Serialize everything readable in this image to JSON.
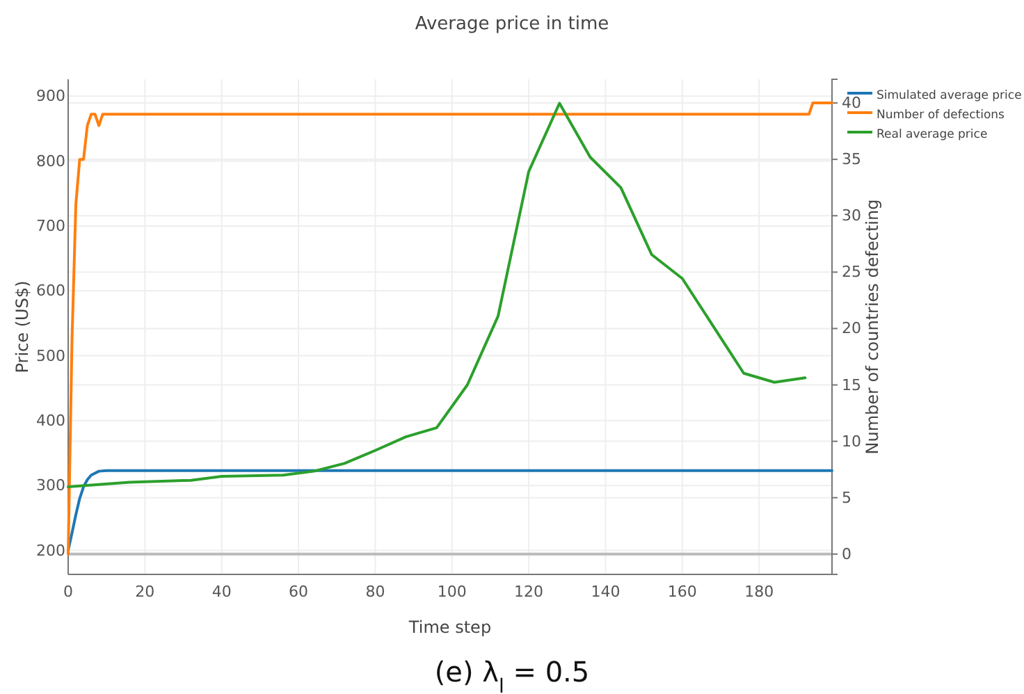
{
  "chart_data": {
    "type": "line",
    "title": "Average price in time",
    "xlabel": "Time step",
    "ylabel": "Price (US$)",
    "y2label": "Number of countries defecting",
    "annotations": [
      "(e) λ$_{l}$ = 0.5"
    ],
    "xlim": [
      0,
      199
    ],
    "xticks": [
      0,
      20,
      40,
      60,
      80,
      100,
      120,
      140,
      160,
      180
    ],
    "ylim": [
      163,
      926
    ],
    "yticks": [
      200,
      300,
      400,
      500,
      600,
      700,
      800,
      900
    ],
    "y2lim": [
      -1.8,
      42.1
    ],
    "y2ticks": [
      0,
      5,
      10,
      15,
      20,
      25,
      30,
      35,
      {
        "value": 40,
        "label": "40"
      }
    ],
    "grid": true,
    "legend": "top right",
    "line_style": "solid",
    "marker": "none",
    "ref_lines": [
      {
        "axis": "y2",
        "value": 0,
        "color": "#bbbbbb"
      }
    ],
    "series": [
      {
        "name": "Simulated average price",
        "color": "#1f77b4",
        "x": [
          0,
          1,
          2,
          3,
          4,
          5,
          6,
          8,
          10,
          12,
          199
        ],
        "values": [
          200,
          227,
          255,
          280,
          298,
          309,
          316,
          322,
          323,
          323,
          323
        ]
      },
      {
        "name": "Number of defections",
        "color": "#ff7f0e",
        "axis": "y2",
        "x": [
          0,
          1,
          2,
          3,
          4,
          5,
          6,
          7,
          8,
          9,
          193,
          194,
          199
        ],
        "values": [
          0,
          19,
          31,
          35,
          35,
          38,
          39,
          39,
          38,
          39,
          39,
          40,
          40
        ]
      },
      {
        "name": "Real average price",
        "color": "#2ca02c",
        "x": [
          0,
          16,
          32,
          40,
          56,
          64,
          72,
          80,
          88,
          96,
          104,
          112,
          120,
          128,
          136,
          144,
          152,
          160,
          168,
          176,
          184,
          192
        ],
        "values": [
          298,
          305,
          308,
          314,
          316,
          322,
          334,
          354,
          375,
          389,
          455,
          561,
          784,
          889,
          806,
          759,
          656,
          619,
          546,
          473,
          459,
          466
        ]
      }
    ]
  }
}
